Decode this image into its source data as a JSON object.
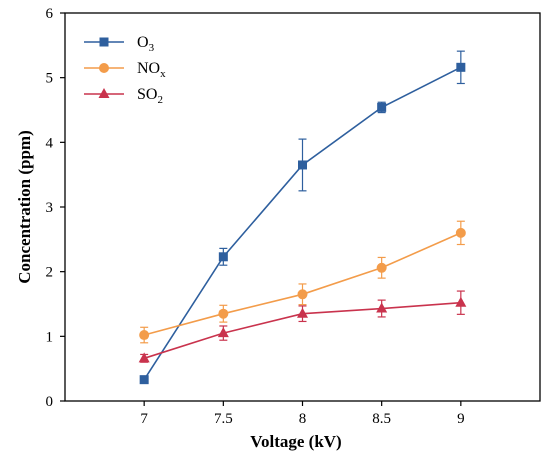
{
  "chart_data": {
    "type": "line",
    "xlabel": "Voltage (kV)",
    "ylabel": "Concentration (ppm)",
    "x": [
      7,
      7.5,
      8,
      8.5,
      9
    ],
    "x_tick_labels": [
      "7",
      "7.5",
      "8",
      "8.5",
      "9"
    ],
    "xlim": [
      6.5,
      9.5
    ],
    "ylim": [
      0,
      6
    ],
    "y_ticks": [
      0,
      1,
      2,
      3,
      4,
      5,
      6
    ],
    "legend_position": "top-left",
    "grid": false,
    "series": [
      {
        "name_main": "O",
        "name_sub": "3",
        "color": "#2e5f9e",
        "marker": "square",
        "values": [
          0.33,
          2.23,
          3.65,
          4.54,
          5.16
        ],
        "errors": [
          0.03,
          0.13,
          0.4,
          0.08,
          0.25
        ]
      },
      {
        "name_main": "NO",
        "name_sub": "x",
        "color": "#f39c4a",
        "marker": "circle",
        "values": [
          1.02,
          1.35,
          1.65,
          2.06,
          2.6
        ],
        "errors": [
          0.12,
          0.13,
          0.16,
          0.16,
          0.18
        ]
      },
      {
        "name_main": "SO",
        "name_sub": "2",
        "color": "#c9334d",
        "marker": "triangle",
        "values": [
          0.66,
          1.05,
          1.35,
          1.43,
          1.52
        ],
        "errors": [
          0.06,
          0.11,
          0.12,
          0.13,
          0.18
        ]
      }
    ]
  }
}
